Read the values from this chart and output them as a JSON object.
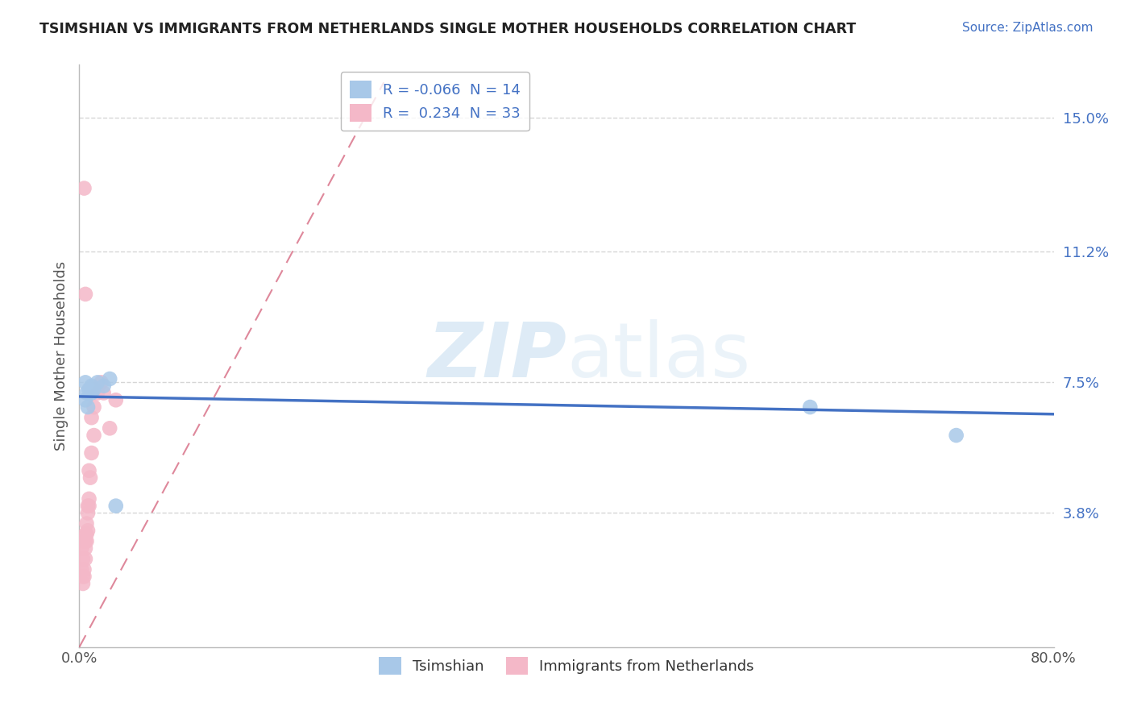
{
  "title": "TSIMSHIAN VS IMMIGRANTS FROM NETHERLANDS SINGLE MOTHER HOUSEHOLDS CORRELATION CHART",
  "source": "Source: ZipAtlas.com",
  "ylabel": "Single Mother Households",
  "xlim": [
    0.0,
    0.8
  ],
  "ylim": [
    0.0,
    0.165
  ],
  "yticks": [
    0.038,
    0.075,
    0.112,
    0.15
  ],
  "ytick_labels": [
    "3.8%",
    "7.5%",
    "11.2%",
    "15.0%"
  ],
  "xticks": [
    0.0,
    0.1,
    0.2,
    0.3,
    0.4,
    0.5,
    0.6,
    0.7,
    0.8
  ],
  "xtick_labels": [
    "0.0%",
    "",
    "",
    "",
    "",
    "",
    "",
    "",
    "80.0%"
  ],
  "tsimshian_color": "#a8c8e8",
  "netherlands_color": "#f4b8c8",
  "tsimshian_line_color": "#4472c4",
  "netherlands_line_color": "#d4607a",
  "tsimshian_R": -0.066,
  "tsimshian_N": 14,
  "netherlands_R": 0.234,
  "netherlands_N": 33,
  "background_color": "#ffffff",
  "grid_color": "#cccccc",
  "watermark_color": "#c8dff0",
  "tsimshian_x": [
    0.005,
    0.005,
    0.006,
    0.007,
    0.008,
    0.01,
    0.01,
    0.012,
    0.015,
    0.02,
    0.025,
    0.03,
    0.6,
    0.72
  ],
  "tsimshian_y": [
    0.07,
    0.075,
    0.072,
    0.068,
    0.073,
    0.072,
    0.074,
    0.073,
    0.075,
    0.074,
    0.076,
    0.04,
    0.068,
    0.06
  ],
  "netherlands_x": [
    0.002,
    0.002,
    0.003,
    0.003,
    0.003,
    0.004,
    0.004,
    0.004,
    0.005,
    0.005,
    0.005,
    0.005,
    0.006,
    0.006,
    0.006,
    0.007,
    0.007,
    0.007,
    0.008,
    0.008,
    0.008,
    0.009,
    0.01,
    0.01,
    0.012,
    0.012,
    0.015,
    0.018,
    0.02,
    0.025,
    0.03,
    0.005,
    0.004
  ],
  "netherlands_y": [
    0.028,
    0.022,
    0.02,
    0.025,
    0.018,
    0.02,
    0.022,
    0.03,
    0.025,
    0.028,
    0.03,
    0.032,
    0.03,
    0.035,
    0.032,
    0.033,
    0.038,
    0.04,
    0.04,
    0.042,
    0.05,
    0.048,
    0.055,
    0.065,
    0.06,
    0.068,
    0.072,
    0.075,
    0.072,
    0.062,
    0.07,
    0.1,
    0.13
  ],
  "tsim_line_x0": 0.0,
  "tsim_line_y0": 0.071,
  "tsim_line_x1": 0.8,
  "tsim_line_y1": 0.066,
  "neth_line_x0": 0.0,
  "neth_line_y0": 0.0,
  "neth_line_x1": 0.25,
  "neth_line_y1": 0.16
}
